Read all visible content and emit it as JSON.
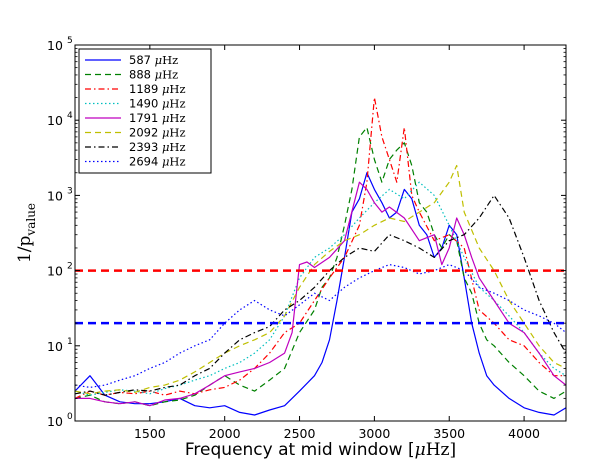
{
  "chart_data": {
    "type": "line",
    "title": "",
    "xlabel": "Frequency at mid window [μHz]",
    "xlabel_parts": [
      "Frequency at mid window [",
      "μ",
      "Hz]"
    ],
    "ylabel_main": "1/p",
    "ylabel_sub": "value",
    "xlim": [
      1000,
      4280
    ],
    "ylim": [
      1,
      100000
    ],
    "yscale": "log",
    "x_ticks": [
      1500,
      2000,
      2500,
      3000,
      3500,
      4000
    ],
    "x_tick_labels": [
      "1500",
      "2000",
      "2500",
      "3000",
      "3500",
      "4000"
    ],
    "y_ticks": [
      1,
      10,
      100,
      1000,
      10000,
      100000
    ],
    "y_tick_base": "10",
    "y_tick_exponents": [
      "0",
      "1",
      "2",
      "3",
      "4",
      "5"
    ],
    "grid": false,
    "legend_position": "top-left",
    "legend_unit": "μHz",
    "thresholds": [
      {
        "value": 100,
        "color": "#ff0000",
        "style": "dashed"
      },
      {
        "value": 20,
        "color": "#0000ff",
        "style": "dashed"
      }
    ],
    "series": [
      {
        "name": "587",
        "color": "#0000ff",
        "style": "solid",
        "x": [
          1000,
          1100,
          1200,
          1300,
          1400,
          1500,
          1600,
          1700,
          1800,
          1900,
          2000,
          2100,
          2200,
          2300,
          2400,
          2500,
          2600,
          2650,
          2700,
          2750,
          2800,
          2850,
          2900,
          2950,
          3000,
          3050,
          3100,
          3150,
          3200,
          3250,
          3300,
          3350,
          3400,
          3450,
          3500,
          3550,
          3600,
          3650,
          3700,
          3750,
          3800,
          3900,
          4000,
          4100,
          4200,
          4280
        ],
        "y": [
          2.5,
          4,
          2.2,
          1.8,
          1.7,
          1.7,
          1.8,
          2,
          1.6,
          1.5,
          1.6,
          1.3,
          1.2,
          1.4,
          1.6,
          2.5,
          4,
          6,
          12,
          40,
          150,
          600,
          900,
          2000,
          1200,
          800,
          500,
          600,
          1200,
          900,
          400,
          300,
          150,
          200,
          400,
          300,
          80,
          20,
          8,
          4,
          3,
          2,
          1.5,
          1.3,
          1.2,
          1.5
        ]
      },
      {
        "name": "888",
        "color": "#008000",
        "style": "dashed",
        "x": [
          1000,
          1100,
          1200,
          1300,
          1400,
          1500,
          1600,
          1700,
          1800,
          1900,
          2000,
          2100,
          2200,
          2300,
          2400,
          2500,
          2600,
          2650,
          2700,
          2750,
          2800,
          2850,
          2900,
          2950,
          3000,
          3050,
          3100,
          3150,
          3200,
          3250,
          3300,
          3350,
          3400,
          3450,
          3500,
          3550,
          3600,
          3650,
          3700,
          3750,
          3800,
          3900,
          4000,
          4100,
          4200,
          4280
        ],
        "y": [
          2,
          2.2,
          1.8,
          1.7,
          1.8,
          1.6,
          1.8,
          1.9,
          2.2,
          3,
          4,
          3,
          2.5,
          3.5,
          5,
          15,
          30,
          60,
          80,
          150,
          400,
          1200,
          6000,
          8000,
          3000,
          1500,
          3000,
          4000,
          5000,
          2500,
          800,
          600,
          300,
          200,
          300,
          250,
          80,
          50,
          20,
          12,
          10,
          6,
          4,
          2.5,
          2,
          2.5
        ]
      },
      {
        "name": "1189",
        "color": "#ff0000",
        "style": "dashdot",
        "x": [
          1000,
          1100,
          1200,
          1300,
          1400,
          1500,
          1600,
          1700,
          1800,
          1900,
          2000,
          2100,
          2200,
          2300,
          2400,
          2500,
          2600,
          2700,
          2800,
          2900,
          2950,
          3000,
          3050,
          3100,
          3150,
          3200,
          3250,
          3300,
          3400,
          3500,
          3600,
          3700,
          3800,
          3900,
          4000,
          4100,
          4200,
          4280
        ],
        "y": [
          2,
          2.5,
          2.2,
          2.4,
          2.3,
          2.5,
          2.2,
          2.5,
          2.3,
          2.6,
          2.8,
          3.5,
          5,
          8,
          15,
          20,
          40,
          80,
          150,
          400,
          1500,
          20000,
          6000,
          3000,
          1500,
          8000,
          1000,
          600,
          250,
          300,
          200,
          30,
          20,
          12,
          10,
          6,
          4,
          4
        ]
      },
      {
        "name": "1490",
        "color": "#00bfbf",
        "style": "dotted",
        "x": [
          1000,
          1100,
          1200,
          1300,
          1400,
          1500,
          1600,
          1700,
          1800,
          1900,
          2000,
          2100,
          2200,
          2300,
          2400,
          2500,
          2600,
          2700,
          2800,
          2900,
          3000,
          3100,
          3200,
          3300,
          3400,
          3500,
          3600,
          3700,
          3800,
          3900,
          4000,
          4100,
          4200,
          4280
        ],
        "y": [
          2.5,
          2.2,
          2.4,
          2.6,
          2.5,
          2.3,
          2.7,
          3,
          3.5,
          4,
          5,
          6,
          8,
          12,
          25,
          80,
          150,
          200,
          300,
          500,
          800,
          1200,
          900,
          1500,
          1000,
          400,
          150,
          60,
          40,
          25,
          15,
          8,
          5,
          4
        ]
      },
      {
        "name": "1791",
        "color": "#bf00bf",
        "style": "solid",
        "x": [
          1000,
          1100,
          1200,
          1300,
          1400,
          1500,
          1600,
          1700,
          1800,
          1900,
          2000,
          2100,
          2200,
          2300,
          2400,
          2450,
          2500,
          2550,
          2600,
          2700,
          2800,
          2900,
          2950,
          3000,
          3050,
          3100,
          3200,
          3300,
          3400,
          3450,
          3500,
          3550,
          3600,
          3650,
          3700,
          3800,
          3900,
          4000,
          4100,
          4200,
          4280
        ],
        "y": [
          2,
          2,
          1.8,
          1.7,
          1.8,
          1.6,
          1.9,
          2,
          2.3,
          3,
          4,
          4.5,
          5,
          6,
          8,
          15,
          120,
          130,
          110,
          150,
          250,
          1500,
          1200,
          800,
          600,
          700,
          500,
          250,
          300,
          120,
          200,
          500,
          300,
          150,
          80,
          40,
          20,
          15,
          8,
          4,
          3
        ]
      },
      {
        "name": "2092",
        "color": "#bfbf00",
        "style": "dashed",
        "x": [
          1000,
          1100,
          1200,
          1300,
          1400,
          1500,
          1600,
          1700,
          1800,
          1900,
          2000,
          2100,
          2200,
          2300,
          2400,
          2500,
          2600,
          2700,
          2800,
          2900,
          3000,
          3100,
          3200,
          3300,
          3400,
          3500,
          3550,
          3600,
          3700,
          3800,
          3900,
          4000,
          4100,
          4200,
          4280
        ],
        "y": [
          2.5,
          2.3,
          2.5,
          2.6,
          2.4,
          2.8,
          3,
          3.5,
          4.5,
          6,
          8,
          10,
          12,
          15,
          25,
          60,
          120,
          180,
          250,
          300,
          400,
          500,
          450,
          600,
          800,
          1500,
          2500,
          600,
          200,
          100,
          40,
          20,
          10,
          6,
          5
        ]
      },
      {
        "name": "2393",
        "color": "#000000",
        "style": "dashdot",
        "x": [
          1000,
          1100,
          1200,
          1300,
          1400,
          1500,
          1600,
          1700,
          1800,
          1900,
          2000,
          2100,
          2200,
          2300,
          2400,
          2500,
          2600,
          2700,
          2800,
          2900,
          3000,
          3100,
          3200,
          3300,
          3400,
          3500,
          3600,
          3700,
          3800,
          3900,
          4000,
          4100,
          4200,
          4280
        ],
        "y": [
          2.3,
          2.5,
          2.2,
          2.4,
          2.6,
          2.5,
          2.8,
          3,
          4,
          5,
          8,
          12,
          15,
          18,
          30,
          40,
          60,
          100,
          150,
          200,
          180,
          300,
          250,
          200,
          150,
          250,
          300,
          500,
          1000,
          500,
          150,
          40,
          15,
          8
        ]
      },
      {
        "name": "2694",
        "color": "#0000ff",
        "style": "dotted",
        "x": [
          1000,
          1100,
          1200,
          1300,
          1400,
          1500,
          1600,
          1700,
          1800,
          1900,
          2000,
          2100,
          2200,
          2300,
          2400,
          2500,
          2600,
          2700,
          2800,
          2900,
          3000,
          3100,
          3200,
          3300,
          3400,
          3500,
          3600,
          3700,
          3800,
          3900,
          4000,
          4100,
          4200,
          4280
        ],
        "y": [
          3,
          2.8,
          3,
          3.5,
          4,
          5,
          6,
          8,
          10,
          12,
          20,
          30,
          40,
          30,
          25,
          35,
          50,
          40,
          60,
          80,
          100,
          120,
          110,
          90,
          100,
          120,
          100,
          60,
          50,
          40,
          30,
          25,
          20,
          15
        ]
      }
    ]
  }
}
